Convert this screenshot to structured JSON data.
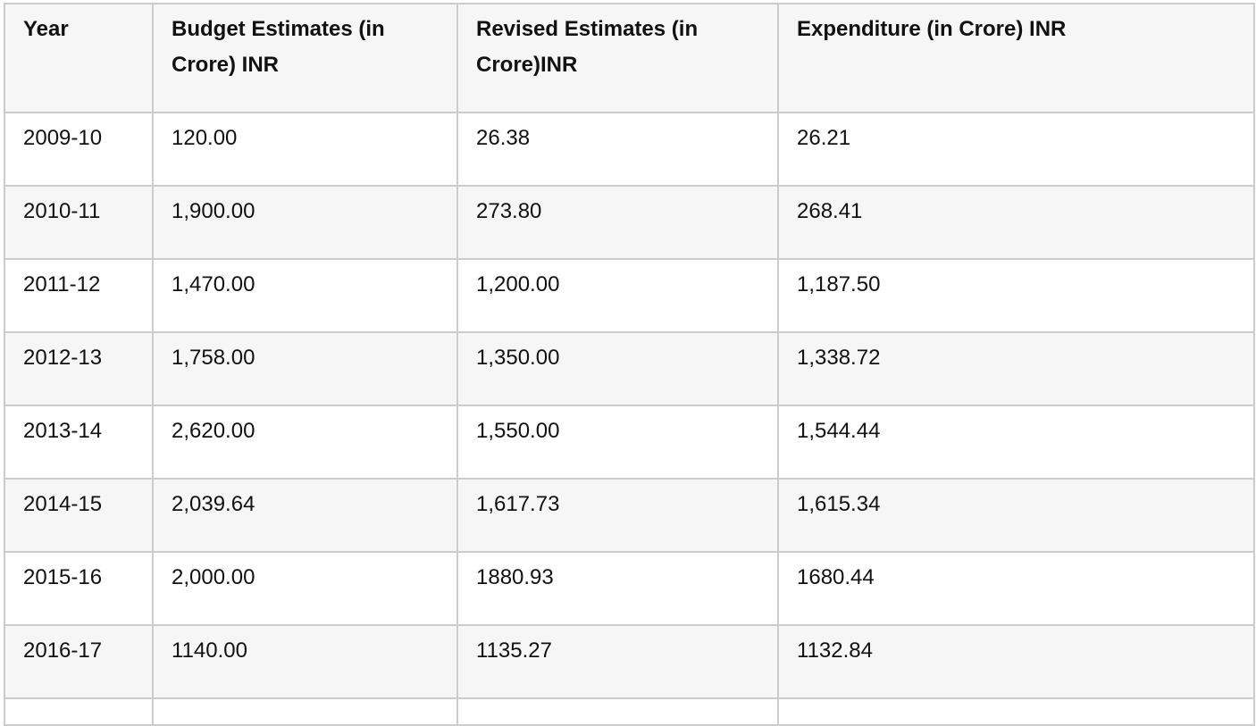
{
  "table": {
    "headers": [
      "Year",
      "Budget Estimates (in Crore) INR",
      "Revised Estimates (in Crore)INR",
      "Expenditure (in Crore) INR"
    ],
    "rows": [
      [
        "2009-10",
        "120.00",
        "26.38",
        "26.21"
      ],
      [
        "2010-11",
        "1,900.00",
        "273.80",
        "268.41"
      ],
      [
        "2011-12",
        "1,470.00",
        "1,200.00",
        "1,187.50"
      ],
      [
        "2012-13",
        "1,758.00",
        "1,350.00",
        "1,338.72"
      ],
      [
        "2013-14",
        "2,620.00",
        "1,550.00",
        "1,544.44"
      ],
      [
        "2014-15",
        "2,039.64",
        "1,617.73",
        "1,615.34"
      ],
      [
        "2015-16",
        "2,000.00",
        "1880.93",
        "1680.44"
      ],
      [
        "2016-17",
        "1140.00",
        "1135.27",
        "1132.84"
      ]
    ]
  },
  "colors": {
    "border": "#cccccc",
    "header_bg": "#f6f6f6",
    "stripe_bg": "#f6f6f6"
  }
}
